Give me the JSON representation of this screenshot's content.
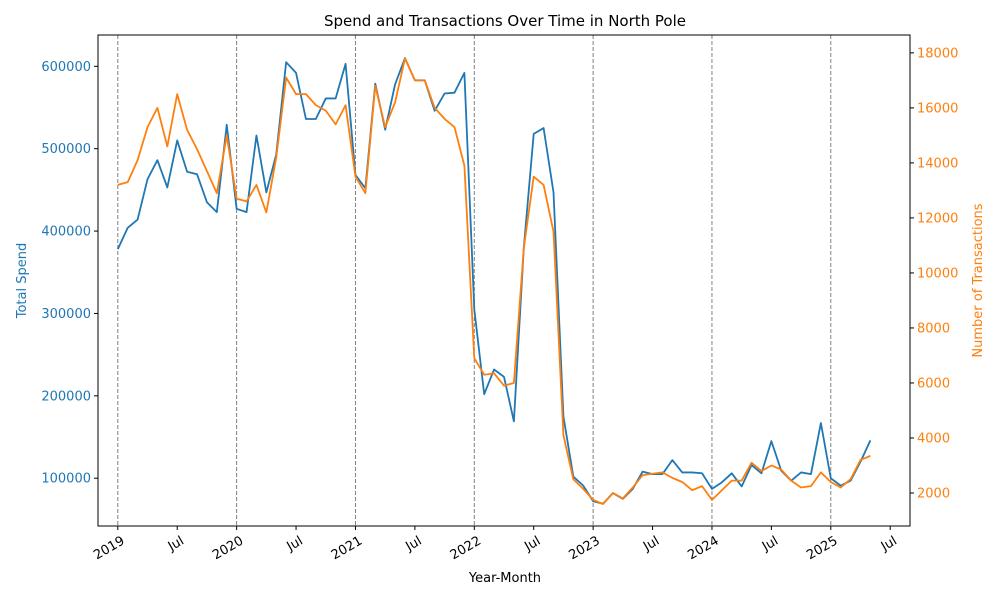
{
  "chart_data": {
    "type": "line",
    "title": "Spend and Transactions Over Time in North Pole",
    "xlabel": "Year-Month",
    "ylabel_left": "Total Spend",
    "ylabel_right": "Number of Transactions",
    "x_tick_labels": [
      "2019",
      "Jul",
      "2020",
      "Jul",
      "2021",
      "Jul",
      "2022",
      "Jul",
      "2023",
      "Jul",
      "2024",
      "Jul",
      "2025",
      "Jul"
    ],
    "x_ticks": [
      "2019-01",
      "2019-07",
      "2020-01",
      "2020-07",
      "2021-01",
      "2021-07",
      "2022-01",
      "2022-07",
      "2023-01",
      "2023-07",
      "2024-01",
      "2024-07",
      "2025-01",
      "2025-07"
    ],
    "year_boundaries": [
      "2019-01",
      "2020-01",
      "2021-01",
      "2022-01",
      "2023-01",
      "2024-01",
      "2025-01"
    ],
    "y_left_ticks": [
      100000,
      200000,
      300000,
      400000,
      500000,
      600000
    ],
    "y_right_ticks": [
      2000,
      4000,
      6000,
      8000,
      10000,
      12000,
      14000,
      16000,
      18000
    ],
    "ylim_left": [
      42000,
      638000
    ],
    "ylim_right": [
      800,
      18650
    ],
    "xlim": [
      "2018-11",
      "2025-09"
    ],
    "colors": {
      "spend": "#1f77b4",
      "transactions": "#ff7f0e",
      "boundary": "#808080"
    },
    "x": [
      "2019-01",
      "2019-02",
      "2019-03",
      "2019-04",
      "2019-05",
      "2019-06",
      "2019-07",
      "2019-08",
      "2019-09",
      "2019-10",
      "2019-11",
      "2019-12",
      "2020-01",
      "2020-02",
      "2020-03",
      "2020-04",
      "2020-05",
      "2020-06",
      "2020-07",
      "2020-08",
      "2020-09",
      "2020-10",
      "2020-11",
      "2020-12",
      "2021-01",
      "2021-02",
      "2021-03",
      "2021-04",
      "2021-05",
      "2021-06",
      "2021-07",
      "2021-08",
      "2021-09",
      "2021-10",
      "2021-11",
      "2021-12",
      "2022-01",
      "2022-02",
      "2022-03",
      "2022-04",
      "2022-05",
      "2022-06",
      "2022-07",
      "2022-08",
      "2022-09",
      "2022-10",
      "2022-11",
      "2022-12",
      "2023-01",
      "2023-02",
      "2023-03",
      "2023-04",
      "2023-05",
      "2023-06",
      "2023-07",
      "2023-08",
      "2023-09",
      "2023-10",
      "2023-11",
      "2023-12",
      "2024-01",
      "2024-02",
      "2024-03",
      "2024-04",
      "2024-05",
      "2024-06",
      "2024-07",
      "2024-08",
      "2024-09",
      "2024-10",
      "2024-11",
      "2024-12",
      "2025-01",
      "2025-02",
      "2025-03",
      "2025-04",
      "2025-05"
    ],
    "series": [
      {
        "name": "Total Spend",
        "axis": "left",
        "values": [
          378000,
          404000,
          414000,
          463000,
          486000,
          453000,
          510000,
          472000,
          469000,
          435000,
          423000,
          529000,
          427000,
          423000,
          516000,
          447000,
          493000,
          605000,
          592000,
          536000,
          536000,
          561000,
          561000,
          603000,
          468000,
          452000,
          579000,
          523000,
          578000,
          610000,
          583000,
          583000,
          546000,
          567000,
          568000,
          592000,
          305000,
          202000,
          232000,
          223000,
          169000,
          380000,
          518000,
          525000,
          447000,
          175000,
          102000,
          91000,
          72000,
          69000,
          82000,
          75000,
          87000,
          108000,
          105000,
          105000,
          122000,
          107000,
          107000,
          106000,
          87000,
          95000,
          106000,
          90000,
          116000,
          106000,
          145000,
          109000,
          97000,
          107000,
          105000,
          167000,
          100000,
          91000,
          97000,
          120000,
          146000
        ]
      },
      {
        "name": "Number of Transactions",
        "axis": "right",
        "values": [
          13200,
          13300,
          14100,
          15300,
          16000,
          14600,
          16500,
          15200,
          14500,
          13700,
          12900,
          15000,
          12700,
          12600,
          13200,
          12200,
          14200,
          17100,
          16500,
          16500,
          16100,
          15900,
          15400,
          16100,
          13500,
          12900,
          16800,
          15300,
          16200,
          17800,
          17000,
          17000,
          16000,
          15600,
          15300,
          13900,
          6900,
          6300,
          6350,
          5900,
          6000,
          10900,
          13500,
          13200,
          11500,
          4100,
          2500,
          2150,
          1750,
          1600,
          2000,
          1800,
          2200,
          2650,
          2700,
          2750,
          2550,
          2400,
          2100,
          2250,
          1750,
          2100,
          2450,
          2450,
          3100,
          2800,
          3000,
          2850,
          2450,
          2200,
          2250,
          2750,
          2400,
          2200,
          2500,
          3200,
          3350
        ]
      }
    ]
  }
}
